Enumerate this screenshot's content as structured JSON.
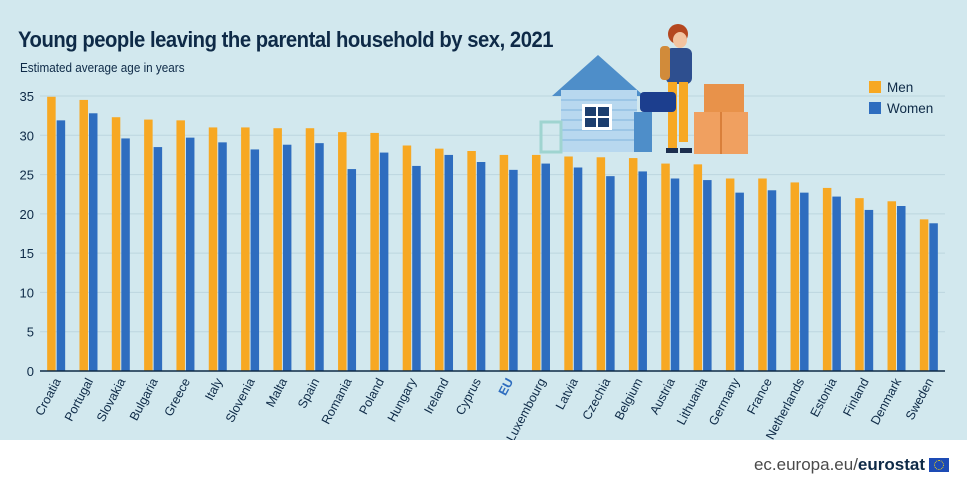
{
  "colors": {
    "men": "#f7a823",
    "women": "#2e6dbf",
    "eu_label": "#2e6dbf",
    "text": "#0e2a47"
  },
  "footer": {
    "domain": "ec.europa.eu/",
    "brand": "eurostat"
  },
  "chart_data": {
    "type": "bar",
    "title": "Young people leaving the parental household by sex, 2021",
    "subtitle": "Estimated average age in years",
    "xlabel": "",
    "ylabel": "Estimated average age in years",
    "ylim": [
      0,
      35
    ],
    "yticks": [
      0,
      5,
      10,
      15,
      20,
      25,
      30,
      35
    ],
    "legend": "top-right",
    "categories": [
      "Croatia",
      "Portugal",
      "Slovakia",
      "Bulgaria",
      "Greece",
      "Italy",
      "Slovenia",
      "Malta",
      "Spain",
      "Romania",
      "Poland",
      "Hungary",
      "Ireland",
      "Cyprus",
      "EU",
      "Luxembourg",
      "Latvia",
      "Czechia",
      "Belgium",
      "Austria",
      "Lithuania",
      "Germany",
      "France",
      "Netherlands",
      "Estonia",
      "Finland",
      "Denmark",
      "Sweden"
    ],
    "highlight_category": "EU",
    "series": [
      {
        "name": "Men",
        "values": [
          34.9,
          34.5,
          32.3,
          32.0,
          31.9,
          31.0,
          31.0,
          30.9,
          30.9,
          30.4,
          30.3,
          28.7,
          28.3,
          28.0,
          27.5,
          27.5,
          27.3,
          27.2,
          27.1,
          26.4,
          26.3,
          24.5,
          24.5,
          24.0,
          23.3,
          22.0,
          21.6,
          19.3
        ]
      },
      {
        "name": "Women",
        "values": [
          31.9,
          32.8,
          29.6,
          28.5,
          29.7,
          29.1,
          28.2,
          28.8,
          29.0,
          25.7,
          27.8,
          26.1,
          27.5,
          26.6,
          25.6,
          26.4,
          25.9,
          24.8,
          25.4,
          24.5,
          24.3,
          22.7,
          23.0,
          22.7,
          22.2,
          20.5,
          21.0,
          18.8
        ]
      }
    ]
  }
}
